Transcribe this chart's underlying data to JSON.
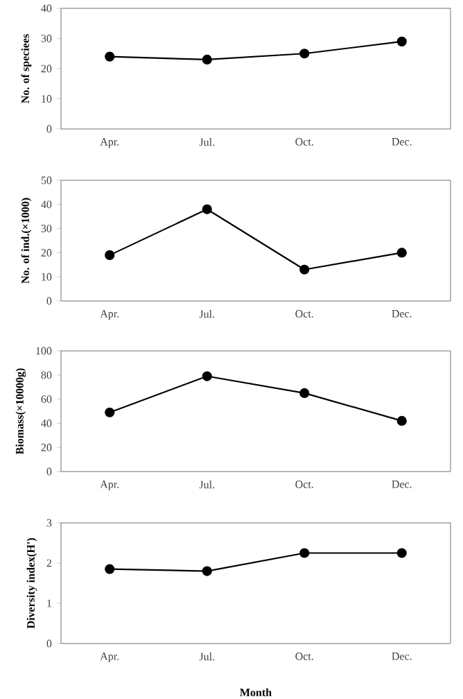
{
  "chart_data": [
    {
      "type": "line",
      "categories": [
        "Apr.",
        "Jul.",
        "Oct.",
        "Dec."
      ],
      "values": [
        24,
        23,
        25,
        29
      ],
      "color": "#000000",
      "marker": "circle",
      "ylabel": "No. of speciees",
      "ylim": [
        0,
        40
      ],
      "yticks": [
        0,
        10,
        20,
        30,
        40
      ]
    },
    {
      "type": "line",
      "categories": [
        "Apr.",
        "Jul.",
        "Oct.",
        "Dec."
      ],
      "values": [
        19,
        38,
        13,
        20
      ],
      "color": "#000000",
      "marker": "circle",
      "ylabel": "No. of ind.(×1000)",
      "ylim": [
        0,
        50
      ],
      "yticks": [
        0,
        10,
        20,
        30,
        40,
        50
      ]
    },
    {
      "type": "line",
      "categories": [
        "Apr.",
        "Jul.",
        "Oct.",
        "Dec."
      ],
      "values": [
        49,
        79,
        65,
        42
      ],
      "color": "#000000",
      "marker": "circle",
      "ylabel": "Biomass(×10000g)",
      "ylim": [
        0,
        100
      ],
      "yticks": [
        0,
        20,
        40,
        60,
        80,
        100
      ]
    },
    {
      "type": "line",
      "categories": [
        "Apr.",
        "Jul.",
        "Oct.",
        "Dec."
      ],
      "values": [
        1.85,
        1.8,
        2.25,
        2.25
      ],
      "color": "#000000",
      "marker": "circle",
      "ylabel": "Diversity index(H')",
      "xlabel": "Month",
      "ylim": [
        0,
        3
      ],
      "yticks": [
        0,
        1,
        2,
        3
      ]
    }
  ]
}
